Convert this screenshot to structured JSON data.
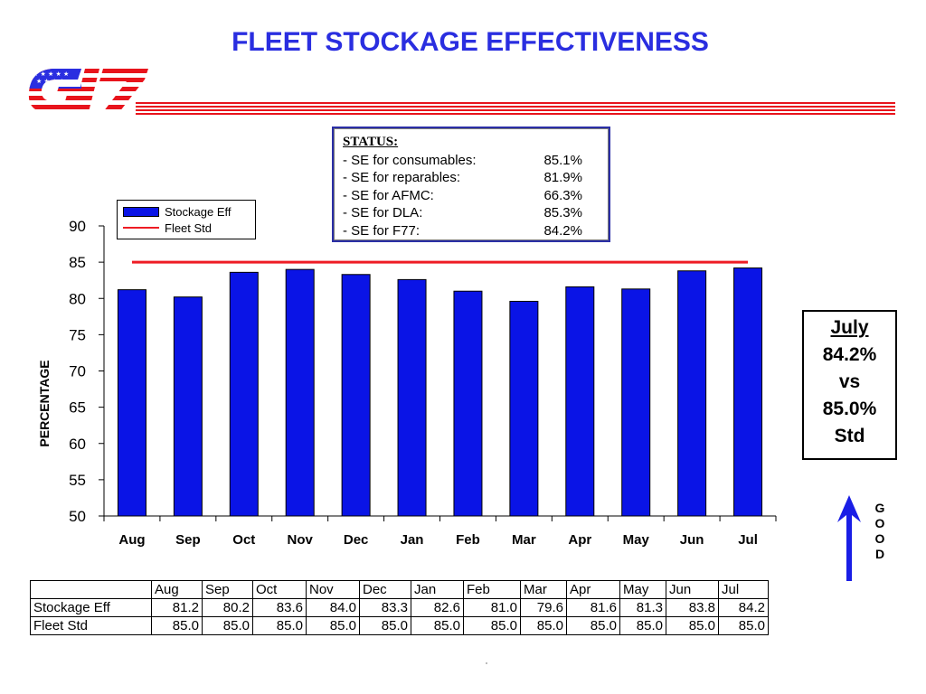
{
  "title": "FLEET STOCKAGE EFFECTIVENESS",
  "colors": {
    "title": "#2a2ee0",
    "bars": "#0a14e6",
    "standard_line": "#ee1c24",
    "arrow": "#1a1ee6"
  },
  "status": {
    "header": "STATUS:",
    "rows": [
      {
        "label": "- SE for consumables:",
        "value": "85.1%"
      },
      {
        "label": "- SE for reparables:",
        "value": "81.9%"
      },
      {
        "label": "- SE for AFMC:",
        "value": "66.3%"
      },
      {
        "label": "- SE for DLA:",
        "value": "85.3%"
      },
      {
        "label": "- SE for F77:",
        "value": "84.2%"
      }
    ]
  },
  "callout": {
    "month": "July",
    "value": "84.2%",
    "vs": "vs",
    "standard": "85.0%",
    "std_label": "Std"
  },
  "good_letters": [
    "G",
    "O",
    "O",
    "D"
  ],
  "chart_data": {
    "type": "bar",
    "categories": [
      "Aug",
      "Sep",
      "Oct",
      "Nov",
      "Dec",
      "Jan",
      "Feb",
      "Mar",
      "Apr",
      "May",
      "Jun",
      "Jul"
    ],
    "series": [
      {
        "name": "Stockage Eff",
        "type": "bar",
        "values": [
          81.2,
          80.2,
          83.6,
          84.0,
          83.3,
          82.6,
          81.0,
          79.6,
          81.6,
          81.3,
          83.8,
          84.2
        ]
      },
      {
        "name": "Fleet Std",
        "type": "line",
        "values": [
          85.0,
          85.0,
          85.0,
          85.0,
          85.0,
          85.0,
          85.0,
          85.0,
          85.0,
          85.0,
          85.0,
          85.0
        ]
      }
    ],
    "ylabel": "PERCENTAGE",
    "ylim": [
      50,
      90
    ],
    "yticks": [
      50,
      55,
      60,
      65,
      70,
      75,
      80,
      85,
      90
    ],
    "legend": "top-left",
    "grid": false
  },
  "table": {
    "header": [
      "",
      "Aug",
      "Sep",
      "Oct",
      "Nov",
      "Dec",
      "Jan",
      "Feb",
      "Mar",
      "Apr",
      "May",
      "Jun",
      "Jul"
    ],
    "rows": [
      [
        "Stockage Eff",
        "81.2",
        "80.2",
        "83.6",
        "84.0",
        "83.3",
        "82.6",
        "81.0",
        "79.6",
        "81.6",
        "81.3",
        "83.8",
        "84.2"
      ],
      [
        "Fleet Std",
        "85.0",
        "85.0",
        "85.0",
        "85.0",
        "85.0",
        "85.0",
        "85.0",
        "85.0",
        "85.0",
        "85.0",
        "85.0",
        "85.0"
      ]
    ]
  }
}
